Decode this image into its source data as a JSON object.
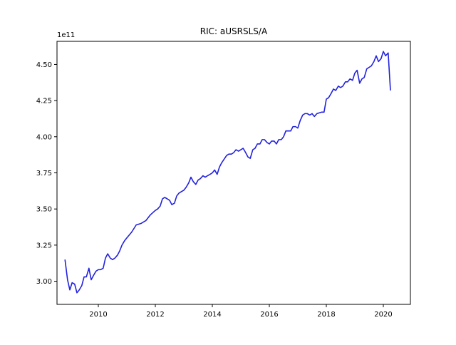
{
  "chart_data": {
    "type": "line",
    "title": "RIC: aUSRSLS/A",
    "offset_label": "1e11",
    "xlabel": "",
    "ylabel": "",
    "xlim": [
      2008.55,
      2020.95
    ],
    "ylim": [
      2.84,
      4.66
    ],
    "x_ticks": [
      2010,
      2012,
      2014,
      2016,
      2018,
      2020
    ],
    "x_tick_labels": [
      "2010",
      "2012",
      "2014",
      "2016",
      "2018",
      "2020"
    ],
    "y_ticks": [
      3.0,
      3.25,
      3.5,
      3.75,
      4.0,
      4.25,
      4.5
    ],
    "y_tick_labels": [
      "3.00",
      "3.25",
      "3.50",
      "3.75",
      "4.00",
      "4.25",
      "4.50"
    ],
    "grid": false,
    "line_color": "#2222dd",
    "series": [
      {
        "x": [
          2008.83,
          2008.92,
          2009.0,
          2009.08,
          2009.17,
          2009.25,
          2009.33,
          2009.42,
          2009.5,
          2009.58,
          2009.67,
          2009.75,
          2009.83,
          2009.92,
          2010.0,
          2010.08,
          2010.17,
          2010.25,
          2010.33,
          2010.42,
          2010.5,
          2010.58,
          2010.67,
          2010.75,
          2010.83,
          2010.92,
          2011.0,
          2011.17,
          2011.33,
          2011.5,
          2011.67,
          2011.83,
          2012.0,
          2012.08,
          2012.17,
          2012.25,
          2012.33,
          2012.42,
          2012.5,
          2012.58,
          2012.67,
          2012.75,
          2012.83,
          2013.0,
          2013.08,
          2013.17,
          2013.25,
          2013.33,
          2013.42,
          2013.5,
          2013.58,
          2013.67,
          2013.75,
          2013.83,
          2013.92,
          2014.0,
          2014.08,
          2014.17,
          2014.25,
          2014.33,
          2014.5,
          2014.58,
          2014.67,
          2014.75,
          2014.83,
          2014.92,
          2015.0,
          2015.08,
          2015.17,
          2015.25,
          2015.33,
          2015.42,
          2015.5,
          2015.58,
          2015.67,
          2015.75,
          2015.83,
          2015.92,
          2016.0,
          2016.08,
          2016.17,
          2016.25,
          2016.33,
          2016.42,
          2016.5,
          2016.58,
          2016.67,
          2016.75,
          2016.83,
          2016.92,
          2017.0,
          2017.08,
          2017.17,
          2017.25,
          2017.33,
          2017.42,
          2017.5,
          2017.58,
          2017.67,
          2017.83,
          2017.92,
          2018.0,
          2018.08,
          2018.17,
          2018.25,
          2018.33,
          2018.42,
          2018.5,
          2018.58,
          2018.67,
          2018.75,
          2018.83,
          2018.92,
          2019.0,
          2019.08,
          2019.17,
          2019.25,
          2019.33,
          2019.42,
          2019.5,
          2019.58,
          2019.67,
          2019.75,
          2019.83,
          2019.92,
          2020.0,
          2020.08,
          2020.17,
          2020.25
        ],
        "y": [
          3.15,
          3.01,
          2.94,
          2.99,
          2.98,
          2.92,
          2.94,
          2.97,
          3.03,
          3.03,
          3.09,
          3.01,
          3.04,
          3.07,
          3.08,
          3.08,
          3.09,
          3.16,
          3.19,
          3.16,
          3.15,
          3.16,
          3.18,
          3.21,
          3.25,
          3.28,
          3.3,
          3.34,
          3.39,
          3.4,
          3.42,
          3.46,
          3.49,
          3.5,
          3.52,
          3.57,
          3.58,
          3.57,
          3.56,
          3.53,
          3.54,
          3.59,
          3.61,
          3.63,
          3.65,
          3.68,
          3.72,
          3.69,
          3.67,
          3.7,
          3.71,
          3.73,
          3.72,
          3.73,
          3.74,
          3.75,
          3.77,
          3.74,
          3.79,
          3.82,
          3.87,
          3.88,
          3.88,
          3.89,
          3.91,
          3.9,
          3.91,
          3.92,
          3.89,
          3.86,
          3.85,
          3.91,
          3.92,
          3.95,
          3.95,
          3.98,
          3.98,
          3.96,
          3.95,
          3.97,
          3.97,
          3.95,
          3.98,
          3.98,
          4.0,
          4.04,
          4.04,
          4.04,
          4.07,
          4.07,
          4.06,
          4.11,
          4.15,
          4.16,
          4.16,
          4.15,
          4.16,
          4.14,
          4.16,
          4.17,
          4.17,
          4.26,
          4.27,
          4.3,
          4.33,
          4.32,
          4.35,
          4.34,
          4.35,
          4.38,
          4.38,
          4.4,
          4.39,
          4.44,
          4.46,
          4.37,
          4.4,
          4.41,
          4.47,
          4.48,
          4.49,
          4.52,
          4.56,
          4.52,
          4.54,
          4.59,
          4.56,
          4.58,
          4.32
        ]
      }
    ]
  }
}
